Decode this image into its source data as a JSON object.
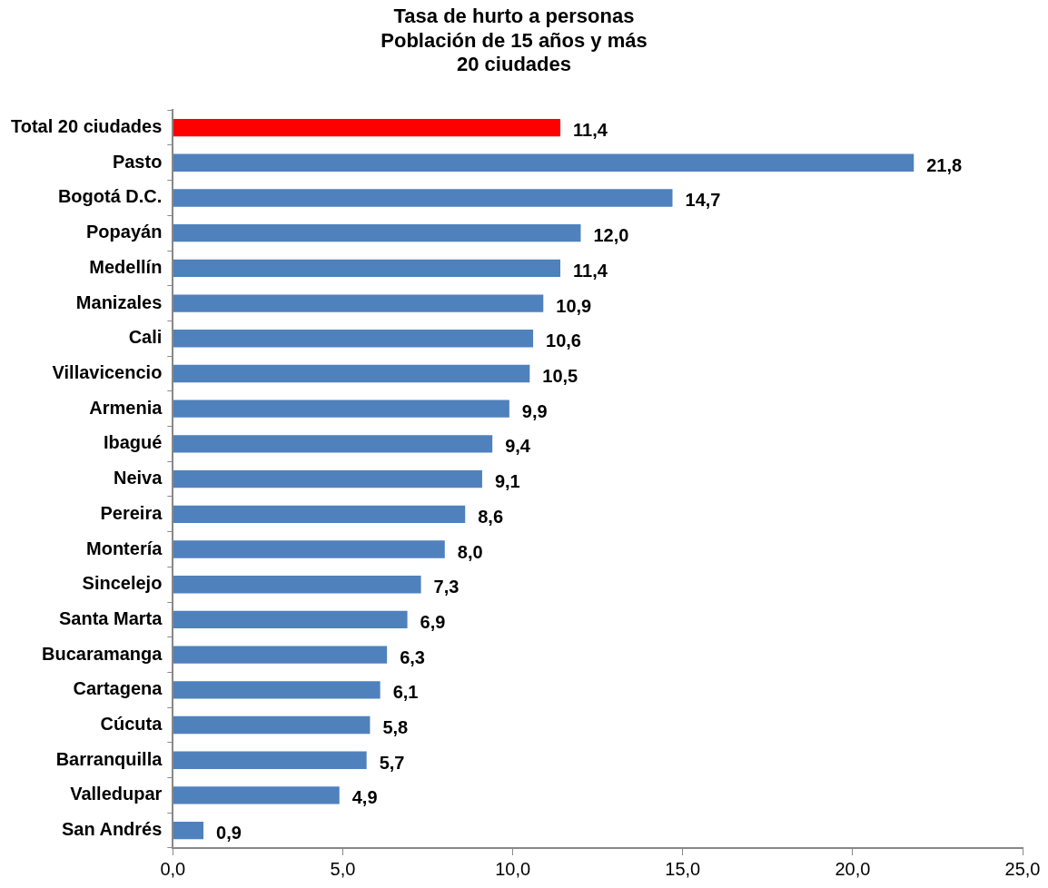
{
  "chart_data": {
    "type": "bar",
    "orientation": "horizontal",
    "title": "Tasa de hurto a personas\nPoblación de 15 años y más\n20 ciudades",
    "categories": [
      "Total 20 ciudades",
      "Pasto",
      "Bogotá D.C.",
      "Popayán",
      "Medellín",
      "Manizales",
      "Cali",
      "Villavicencio",
      "Armenia",
      "Ibagué",
      "Neiva",
      "Pereira",
      "Montería",
      "Sincelejo",
      "Santa Marta",
      "Bucaramanga",
      "Cartagena",
      "Cúcuta",
      "Barranquilla",
      "Valledupar",
      "San Andrés"
    ],
    "values": [
      11.4,
      21.8,
      14.7,
      12.0,
      11.4,
      10.9,
      10.6,
      10.5,
      9.9,
      9.4,
      9.1,
      8.6,
      8.0,
      7.3,
      6.9,
      6.3,
      6.1,
      5.8,
      5.7,
      4.9,
      0.9
    ],
    "value_labels": [
      "11,4",
      "21,8",
      "14,7",
      "12,0",
      "11,4",
      "10,9",
      "10,6",
      "10,5",
      "9,9",
      "9,4",
      "9,1",
      "8,6",
      "8,0",
      "7,3",
      "6,9",
      "6,3",
      "6,1",
      "5,8",
      "5,7",
      "4,9",
      "0,9"
    ],
    "colors": [
      "#ff0000",
      "#4f81bd",
      "#4f81bd",
      "#4f81bd",
      "#4f81bd",
      "#4f81bd",
      "#4f81bd",
      "#4f81bd",
      "#4f81bd",
      "#4f81bd",
      "#4f81bd",
      "#4f81bd",
      "#4f81bd",
      "#4f81bd",
      "#4f81bd",
      "#4f81bd",
      "#4f81bd",
      "#4f81bd",
      "#4f81bd",
      "#4f81bd",
      "#4f81bd"
    ],
    "xlim": [
      0,
      25
    ],
    "xticks": [
      {
        "value": 0,
        "label": "0,0"
      },
      {
        "value": 5,
        "label": "5,0"
      },
      {
        "value": 10,
        "label": "10,0"
      },
      {
        "value": 15,
        "label": "15,0"
      },
      {
        "value": 20,
        "label": "20,0"
      },
      {
        "value": 25,
        "label": "25,0"
      }
    ],
    "grid": false,
    "legend": false
  }
}
